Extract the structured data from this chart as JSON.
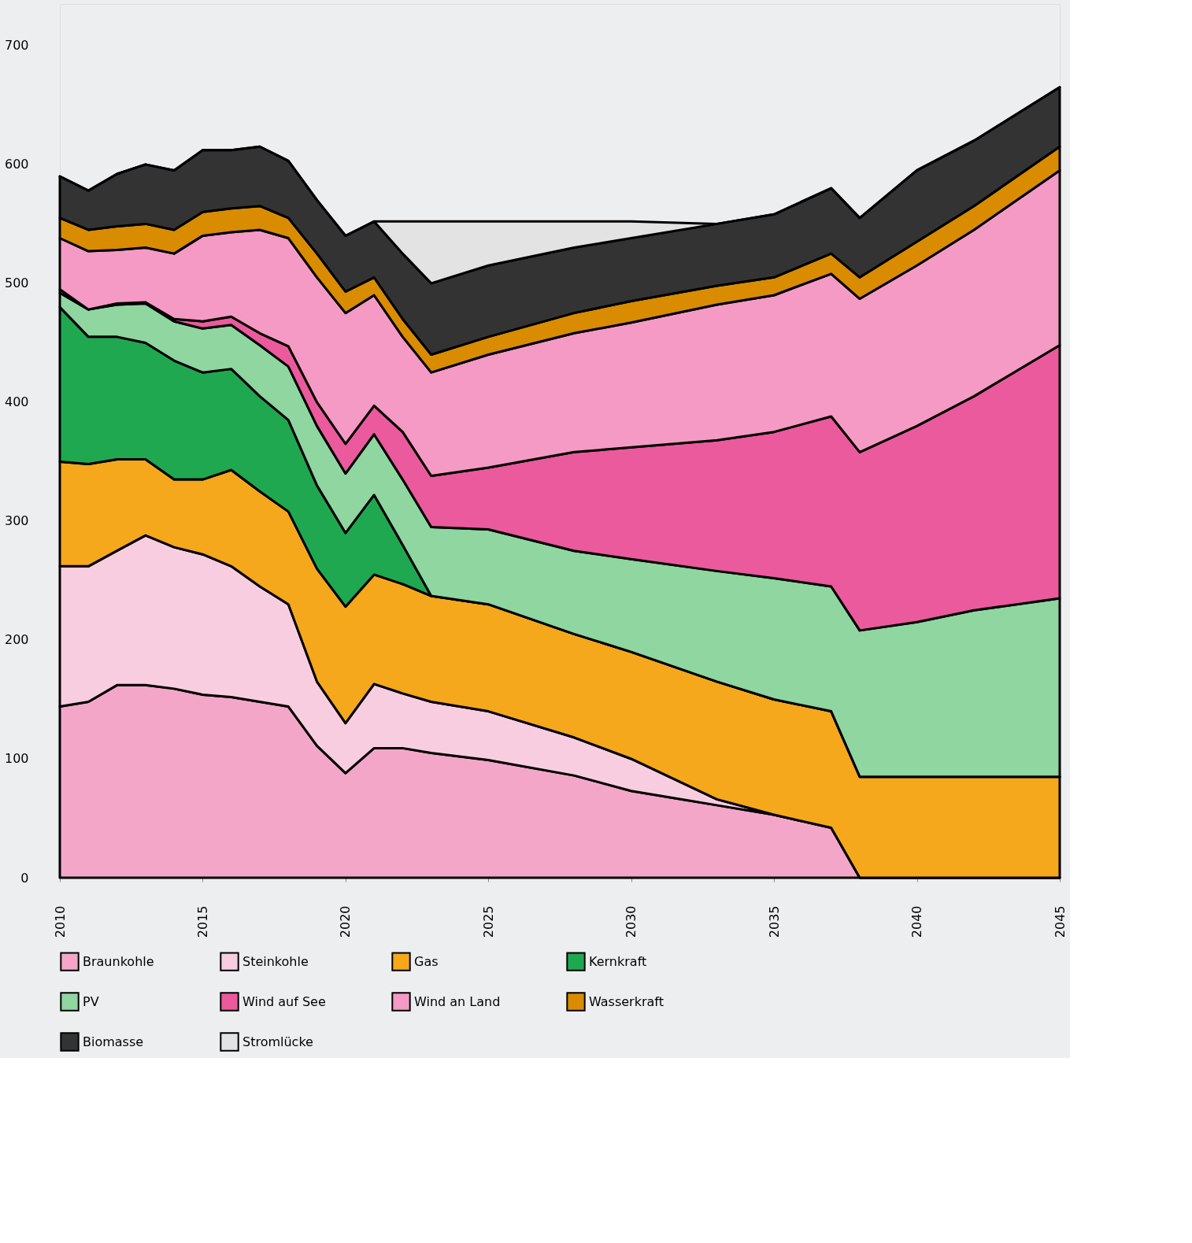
{
  "chart_data": {
    "type": "area",
    "stacked": true,
    "x": [
      2010,
      2011,
      2012,
      2013,
      2014,
      2015,
      2016,
      2017,
      2018,
      2019,
      2020,
      2021,
      2022,
      2023,
      2025,
      2028,
      2030,
      2033,
      2035,
      2037,
      2038,
      2040,
      2042,
      2045
    ],
    "xlim": [
      2010,
      2045
    ],
    "xticks": [
      2010,
      2015,
      2020,
      2025,
      2030,
      2035,
      2040,
      2045
    ],
    "ylim": [
      0,
      735
    ],
    "yticks": [
      0,
      100,
      200,
      300,
      400,
      500,
      600,
      700
    ],
    "grid": false,
    "legend": "bottom",
    "series": [
      {
        "name": "Braunkohle",
        "color": "#f4a6c8",
        "values": [
          144,
          148,
          162,
          162,
          159,
          154,
          152,
          148,
          144,
          111,
          88,
          109,
          109,
          105,
          99,
          86,
          73,
          61,
          53,
          42,
          0,
          0,
          0,
          0
        ]
      },
      {
        "name": "Steinkohle",
        "color": "#f9cde0",
        "values": [
          118,
          114,
          113,
          126,
          119,
          118,
          110,
          97,
          86,
          54,
          42,
          54,
          46,
          43,
          41,
          32,
          27,
          5,
          0,
          0,
          0,
          0,
          0,
          0
        ]
      },
      {
        "name": "Gas",
        "color": "#f5a81c",
        "values": [
          88,
          86,
          77,
          64,
          57,
          63,
          81,
          80,
          78,
          95,
          98,
          92,
          92,
          89,
          90,
          87,
          90,
          99,
          97,
          98,
          85,
          85,
          85,
          85
        ]
      },
      {
        "name": "Kernkraft",
        "color": "#1fa84f",
        "values": [
          130,
          107,
          103,
          98,
          100,
          90,
          85,
          80,
          77,
          70,
          62,
          67,
          33,
          0,
          0,
          0,
          0,
          0,
          0,
          0,
          0,
          0,
          0,
          0
        ]
      },
      {
        "name": "PV",
        "color": "#8fd6a0",
        "values": [
          12,
          23,
          27,
          33,
          33,
          37,
          37,
          43,
          45,
          50,
          50,
          51,
          55,
          58,
          63,
          70,
          78,
          93,
          102,
          105,
          123,
          130,
          140,
          150
        ]
      },
      {
        "name": "Wind auf See",
        "color": "#ea5a9c",
        "values": [
          3,
          0,
          1,
          1,
          2,
          6,
          7,
          10,
          17,
          20,
          25,
          24,
          40,
          43,
          52,
          83,
          94,
          110,
          123,
          143,
          150,
          165,
          180,
          213
        ]
      },
      {
        "name": "Wind an Land",
        "color": "#f59ac4",
        "values": [
          43,
          49,
          45,
          46,
          55,
          72,
          71,
          87,
          91,
          105,
          110,
          93,
          80,
          87,
          95,
          100,
          105,
          114,
          115,
          120,
          129,
          135,
          140,
          147
        ]
      },
      {
        "name": "Wasserkraft",
        "color": "#d98c00",
        "values": [
          17,
          18,
          20,
          20,
          20,
          20,
          20,
          20,
          17,
          20,
          18,
          15,
          15,
          15,
          15,
          17,
          18,
          16,
          15,
          17,
          18,
          20,
          20,
          20
        ]
      },
      {
        "name": "Biomasse",
        "color": "#333333",
        "values": [
          35,
          33,
          44,
          50,
          50,
          52,
          49,
          50,
          48,
          45,
          47,
          47,
          55,
          60,
          60,
          55,
          53,
          52,
          53,
          55,
          50,
          60,
          55,
          50
        ]
      },
      {
        "name": "Stromlücke",
        "color": "#e3e3e3",
        "values": [
          0,
          0,
          0,
          0,
          0,
          0,
          0,
          0,
          0,
          0,
          0,
          0,
          27,
          52,
          37,
          22,
          14,
          0,
          0,
          0,
          0,
          0,
          0,
          0
        ]
      }
    ]
  }
}
